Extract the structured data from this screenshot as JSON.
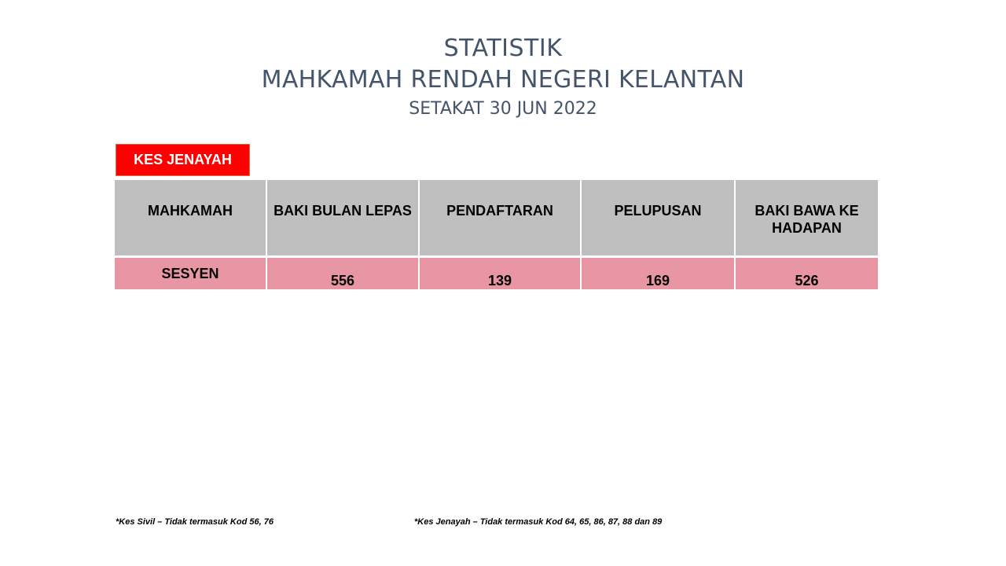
{
  "title": {
    "line1": "STATISTIK",
    "line2": "MAHKAMAH RENDAH NEGERI KELANTAN",
    "line3": "SETAKAT 30 JUN 2022"
  },
  "category_label": "KES JENAYAH",
  "colors": {
    "title": "#44546a",
    "category_badge": "#ff0000",
    "header_bg": "#bfbfbf",
    "row_bg": "#e996a4"
  },
  "table": {
    "headers": [
      "MAHKAMAH",
      "BAKI BULAN LEPAS",
      "PENDAFTARAN",
      "PELUPUSAN",
      "BAKI BAWA KE HADAPAN"
    ],
    "rows": [
      {
        "mahkamah": "SESYEN",
        "baki_bulan_lepas": "556",
        "pendaftaran": "139",
        "pelupusan": "169",
        "baki_bawa_ke_hadapan": "526"
      }
    ]
  },
  "footnotes": {
    "civil": "*Kes Sivil – Tidak termasuk Kod 56, 76",
    "criminal": "*Kes Jenayah – Tidak termasuk Kod 64, 65, 86, 87, 88 dan 89"
  }
}
